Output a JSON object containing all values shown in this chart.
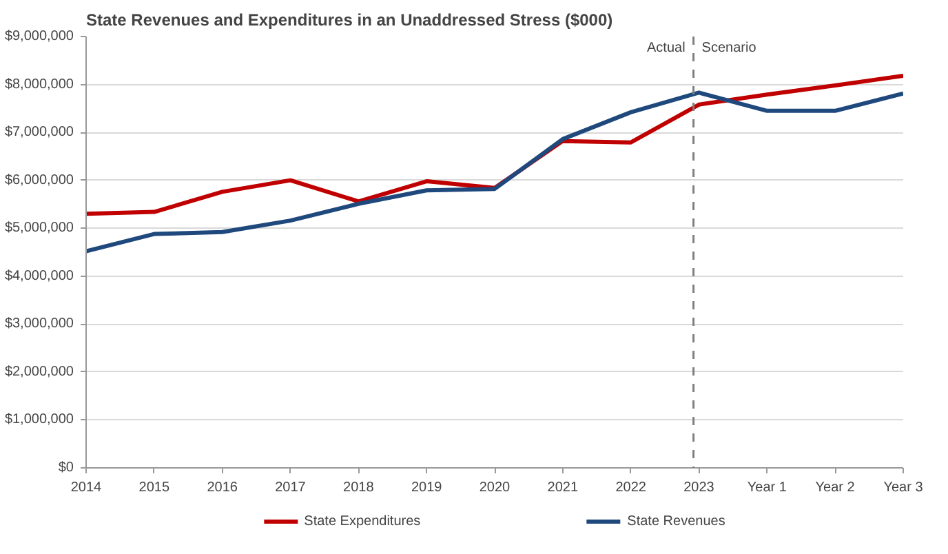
{
  "chart_data": {
    "type": "line",
    "title": "State Revenues and Expenditures in an Unaddressed  Stress ($000)",
    "categories": [
      "2014",
      "2015",
      "2016",
      "2017",
      "2018",
      "2019",
      "2020",
      "2021",
      "2022",
      "2023",
      "Year 1",
      "Year 2",
      "Year 3"
    ],
    "series": [
      {
        "name": "State Expenditures",
        "color": "#c00000",
        "values": [
          5300000,
          5340000,
          5760000,
          6000000,
          5560000,
          5980000,
          5840000,
          6820000,
          6790000,
          7580000,
          7790000,
          7980000,
          8180000
        ]
      },
      {
        "name": "State Revenues",
        "color": "#1f497d",
        "values": [
          4520000,
          4880000,
          4920000,
          5160000,
          5510000,
          5790000,
          5820000,
          6860000,
          7420000,
          7830000,
          7450000,
          7450000,
          7810000
        ]
      }
    ],
    "ylim": [
      0,
      9000000
    ],
    "yticks": [
      {
        "value": 0,
        "label": "$0"
      },
      {
        "value": 1000000,
        "label": "$1,000,000"
      },
      {
        "value": 2000000,
        "label": "$2,000,000"
      },
      {
        "value": 3000000,
        "label": "$3,000,000"
      },
      {
        "value": 4000000,
        "label": "$4,000,000"
      },
      {
        "value": 5000000,
        "label": "$5,000,000"
      },
      {
        "value": 6000000,
        "label": "$6,000,000"
      },
      {
        "value": 7000000,
        "label": "$7,000,000"
      },
      {
        "value": 8000000,
        "label": "$8,000,000"
      },
      {
        "value": 9000000,
        "label": "$9,000,000"
      }
    ],
    "ref_lines": [
      {
        "axis": "x",
        "value": "2023",
        "color": "#808080",
        "line_style": "dashed"
      }
    ],
    "annotations": [
      "Actual",
      "Scenario"
    ],
    "grid": "y",
    "legend": "bottom",
    "marker": "none",
    "line_style": "solid"
  }
}
